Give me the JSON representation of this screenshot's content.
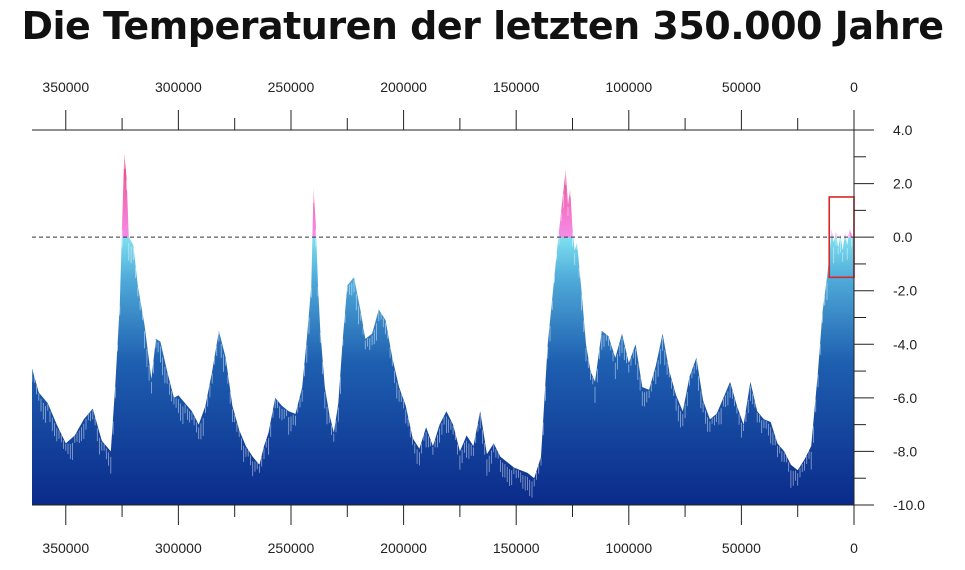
{
  "chart_data": {
    "type": "area",
    "title": "Die Temperaturen der letzten 350.000 Jahre",
    "xlabel": "",
    "ylabel": "",
    "x_axis": {
      "reversed": true,
      "xlim": [
        365000,
        0
      ],
      "ticks": [
        350000,
        300000,
        250000,
        200000,
        150000,
        100000,
        50000,
        0
      ],
      "tick_labels": [
        "350000",
        "300000",
        "250000",
        "200000",
        "150000",
        "100000",
        "50000",
        "0"
      ]
    },
    "y_axis": {
      "ylim": [
        -10,
        4
      ],
      "ticks": [
        4,
        2,
        0,
        -2,
        -4,
        -6,
        -8,
        -10
      ],
      "tick_labels": [
        "4.0",
        "2.0",
        "0.0",
        "-2.0",
        "-4.0",
        "-6.0",
        "-8.0",
        "-10.0"
      ],
      "side": "right"
    },
    "reference_line": {
      "y": 0,
      "style": "dashed"
    },
    "highlight_box": {
      "x_range": [
        11000,
        0
      ],
      "y_range": [
        1.5,
        -1.5
      ],
      "color": "#d62728"
    },
    "colors": {
      "below_zero_bottom": "#0a2a8a",
      "below_zero_top": "#7ee0f0",
      "above_zero_low": "#f58ce8",
      "above_zero_high": "#e0102a"
    },
    "series": [
      {
        "x": [
          365000,
          362000,
          358000,
          354000,
          350000,
          346000,
          342000,
          338000,
          334000,
          330000,
          328000,
          326000,
          325000,
          324000,
          323000,
          322000,
          320000,
          318000,
          315000,
          312000,
          310000,
          308000,
          305000,
          302000,
          300000,
          297000,
          294000,
          291000,
          288000,
          285000,
          282000,
          279000,
          276000,
          273000,
          270000,
          267000,
          264000,
          262000,
          260000,
          257000,
          254000,
          251000,
          248000,
          245000,
          243000,
          241000,
          240000,
          239000,
          238000,
          237000,
          235000,
          233000,
          231000,
          229000,
          227000,
          225000,
          222000,
          219000,
          217000,
          214000,
          211000,
          208000,
          205000,
          202000,
          199000,
          196000,
          193000,
          190000,
          187000,
          184000,
          181000,
          178000,
          175000,
          172000,
          169000,
          166000,
          163000,
          160000,
          157000,
          154000,
          151000,
          148000,
          145000,
          142000,
          139000,
          136000,
          134000,
          132000,
          130000,
          128000,
          127000,
          126000,
          125000,
          124000,
          123000,
          121000,
          119000,
          117000,
          115000,
          112000,
          109000,
          106000,
          103000,
          100000,
          97000,
          94000,
          91000,
          88000,
          85000,
          82000,
          79000,
          76000,
          73000,
          70000,
          67000,
          64000,
          61000,
          58000,
          55000,
          52000,
          49000,
          46000,
          43000,
          40000,
          37000,
          34000,
          31000,
          28000,
          25000,
          22000,
          19000,
          16000,
          14000,
          12000,
          11000,
          10000,
          9000,
          8000,
          7000,
          6000,
          5000,
          4000,
          3000,
          2000,
          1000,
          0
        ],
        "y": [
          -4.9,
          -5.8,
          -6.2,
          -7.0,
          -7.7,
          -7.4,
          -6.8,
          -6.4,
          -7.6,
          -8.0,
          -5.5,
          -2.5,
          0.5,
          3.1,
          2.2,
          0.0,
          -0.3,
          -1.8,
          -3.3,
          -5.3,
          -3.8,
          -3.9,
          -5.0,
          -6.0,
          -5.9,
          -6.2,
          -6.5,
          -7.0,
          -6.3,
          -5.0,
          -3.5,
          -4.5,
          -6.3,
          -7.2,
          -7.8,
          -8.2,
          -8.5,
          -7.8,
          -7.3,
          -6.0,
          -6.3,
          -6.5,
          -6.6,
          -5.6,
          -3.8,
          -1.8,
          1.8,
          0.5,
          -1.8,
          -3.5,
          -5.6,
          -6.6,
          -7.3,
          -6.2,
          -3.8,
          -1.8,
          -1.5,
          -2.8,
          -3.8,
          -3.6,
          -2.7,
          -3.1,
          -4.5,
          -5.6,
          -6.3,
          -7.5,
          -7.9,
          -7.1,
          -7.8,
          -7.0,
          -6.5,
          -7.0,
          -8.0,
          -7.4,
          -7.8,
          -6.5,
          -8.1,
          -7.7,
          -8.2,
          -8.4,
          -8.6,
          -8.7,
          -8.8,
          -9.0,
          -8.2,
          -4.0,
          -2.3,
          -0.6,
          1.0,
          2.5,
          1.2,
          1.8,
          0.3,
          -0.5,
          -0.2,
          -2.0,
          -4.0,
          -5.0,
          -5.4,
          -3.5,
          -3.7,
          -4.5,
          -3.6,
          -4.7,
          -4.0,
          -5.6,
          -5.7,
          -4.8,
          -3.6,
          -5.0,
          -5.9,
          -6.5,
          -5.2,
          -4.5,
          -6.1,
          -6.8,
          -6.6,
          -6.0,
          -5.4,
          -6.3,
          -7.0,
          -5.4,
          -6.5,
          -6.8,
          -6.9,
          -7.7,
          -8.0,
          -8.5,
          -8.7,
          -8.3,
          -7.8,
          -5.0,
          -2.8,
          -1.5,
          -0.8,
          0.3,
          -0.2,
          0.2,
          -0.4,
          0.1,
          -0.5,
          0.2,
          -0.3,
          0.3,
          0.1,
          -0.1
        ]
      }
    ]
  }
}
